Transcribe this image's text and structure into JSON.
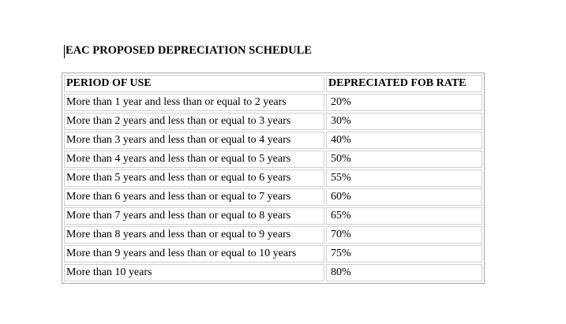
{
  "title": "EAC PROPOSED DEPRECIATION SCHEDULE",
  "table": {
    "header": [
      "PERIOD OF USE",
      "DEPRECIATED FOB RATE"
    ],
    "rows": [
      [
        "More than 1 year and less than or equal to 2 years",
        "20%"
      ],
      [
        "More than 2 years and less than or equal to 3 years",
        "30%"
      ],
      [
        "More than 3 years and less than or equal to 4 years",
        "40%"
      ],
      [
        "More than 4 years and less than or equal to 5 years",
        "50%"
      ],
      [
        "More than 5 years and less than or equal to 6 years",
        "55%"
      ],
      [
        "More than 6 years and less than or equal to 7 years",
        "60%"
      ],
      [
        "More than 7 years and less than or equal to 8 years",
        "65%"
      ],
      [
        "More than 8 years and less than or equal to 9 years",
        "70%"
      ],
      [
        "More than 9 years and less than or equal to 10 years",
        "75%"
      ],
      [
        "More than 10 years",
        "80%"
      ]
    ]
  }
}
